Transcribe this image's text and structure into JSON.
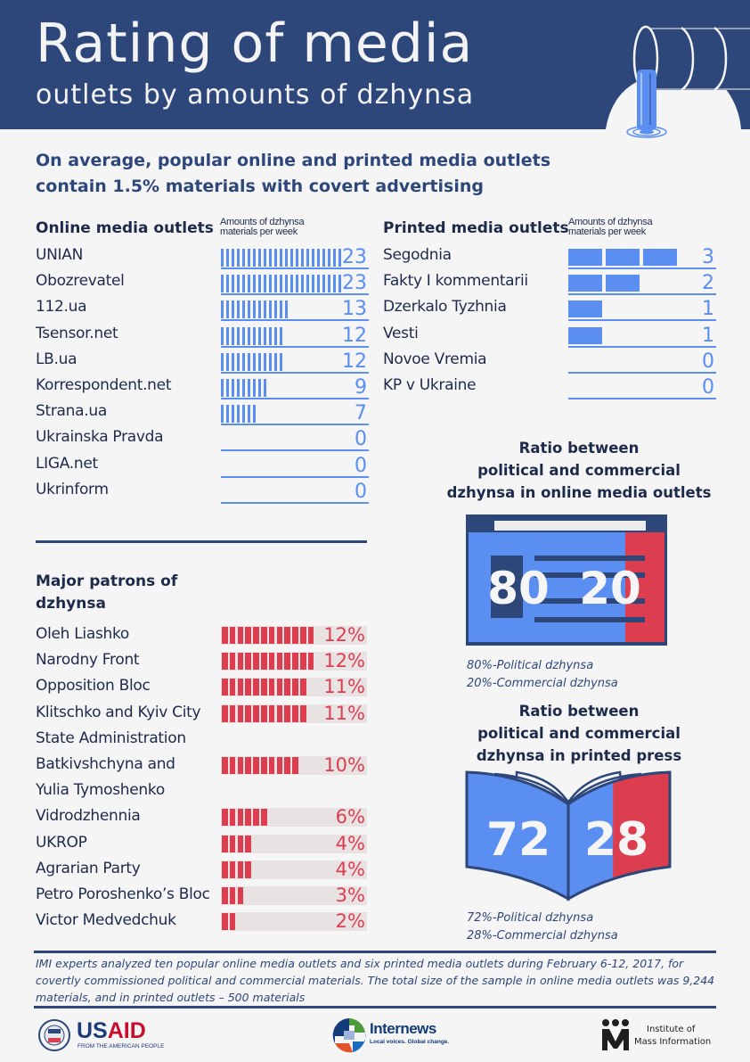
{
  "header": {
    "title": "Rating of media",
    "subtitle": "outlets by amounts of dzhynsa",
    "icon": "pipe-water-icon"
  },
  "intro": {
    "line1": "On average, popular online and printed media outlets",
    "line2": "contain 1.5% materials with covert advertising"
  },
  "colors": {
    "navy": "#2e477a",
    "blue": "#5a8ef0",
    "red": "#dc3d4f",
    "background": "#f5f5f5",
    "track": "#e8e2e2"
  },
  "chart_data": [
    {
      "type": "bar",
      "title": "Online media outlets",
      "ylabel": "Amounts of dzhynsa materials per week",
      "col_header_line1": "Amounts of dzhynsa",
      "col_header_line2": "materials per week",
      "categories": [
        "UNIAN",
        "Obozrevatel",
        "112.ua",
        "Tsensor.net",
        "LB.ua",
        "Korrespondent.net",
        "Strana.ua",
        "Ukrainska Pravda",
        "LIGA.net",
        "Ukrinform"
      ],
      "values": [
        23,
        23,
        13,
        12,
        12,
        9,
        7,
        0,
        0,
        0
      ],
      "labels": [
        "23",
        "23",
        "13",
        "12",
        "12",
        "9",
        "7",
        "0",
        "0",
        "0"
      ],
      "xlim": [
        0,
        23
      ]
    },
    {
      "type": "bar",
      "title": "Printed media outlets",
      "ylabel": "Amounts of dzhynsa materials per week",
      "col_header_line1": "Amounts of dzhynsa",
      "col_header_line2": "materials per week",
      "categories": [
        "Segodnia",
        "Fakty I kommentarii",
        "Dzerkalo Tyzhnia",
        "Vesti",
        "Novoe Vremia",
        "KP v Ukraine"
      ],
      "values": [
        3,
        2,
        1,
        1,
        0,
        0
      ],
      "labels": [
        "3",
        "2",
        "1",
        "1",
        "0",
        "0"
      ],
      "xlim": [
        0,
        4
      ]
    },
    {
      "type": "bar",
      "title": "Major patrons of dzhynsa",
      "title_line1": "Major patrons of",
      "title_line2": "dzhynsa",
      "categories": [
        "Oleh Liashko",
        "Narodny Front",
        "Opposition Bloc",
        "Klitschko and Kyiv City State Administration",
        "Batkivshchyna and Yulia Tymoshenko",
        "Vidrodzhennia",
        "UKROP",
        "Agrarian Party",
        "Petro Poroshenko’s Bloc",
        "Victor Medvedchuk"
      ],
      "label_lines": [
        [
          "Oleh Liashko"
        ],
        [
          "Narodny Front"
        ],
        [
          "Opposition Bloc"
        ],
        [
          "Klitschko and Kyiv City",
          "State Administration"
        ],
        [
          "Batkivshchyna and",
          "Yulia Tymoshenko"
        ],
        [
          "Vidrodzhennia"
        ],
        [
          "UKROP"
        ],
        [
          "Agrarian Party"
        ],
        [
          "Petro Poroshenko’s Bloc"
        ],
        [
          "Victor Medvedchuk"
        ]
      ],
      "values": [
        12,
        12,
        11,
        11,
        10,
        6,
        4,
        4,
        3,
        2
      ],
      "labels": [
        "12%",
        "12%",
        "11%",
        "11%",
        "10%",
        "6%",
        "4%",
        "4%",
        "3%",
        "2%"
      ],
      "unit": "%",
      "xlim": [
        0,
        18
      ]
    },
    {
      "type": "pie",
      "title": "Ratio between political and commercial dzhynsa in online media outlets",
      "title_lines": [
        "Ratio between",
        "political and commercial",
        "dzhynsa in online media outlets"
      ],
      "categories": [
        "Political dzhynsa",
        "Commercial dzhynsa"
      ],
      "values": [
        80,
        20
      ],
      "big_labels": [
        "80",
        "20"
      ],
      "legend": [
        "80%-Political dzhynsa",
        "20%-Commercial dzhynsa"
      ]
    },
    {
      "type": "pie",
      "title": "Ratio between political and commercial dzhynsa in printed press",
      "title_lines": [
        "Ratio between",
        "political and commercial",
        "dzhynsa in printed press"
      ],
      "categories": [
        "Political dzhynsa",
        "Commercial dzhynsa"
      ],
      "values": [
        72,
        28
      ],
      "big_labels": [
        "72",
        "28"
      ],
      "legend": [
        "72%-Political dzhynsa",
        "28%-Commercial dzhynsa"
      ]
    }
  ],
  "footnote": "IMI experts analyzed ten popular online media outlets and six printed media outlets during February 6-12, 2017, for covertly commissioned political and commercial materials. The total size of the sample in online media outlets was 9,244 materials, and in printed outlets – 500 materials",
  "logos": {
    "usaid": {
      "name": "USAID",
      "us": "US",
      "aid": "AID",
      "tagline": "FROM THE AMERICAN PEOPLE"
    },
    "internews": {
      "name": "Internews",
      "tagline": "Local voices. Global change."
    },
    "imi": {
      "line1": "Institute of",
      "line2": "Mass Information"
    }
  }
}
